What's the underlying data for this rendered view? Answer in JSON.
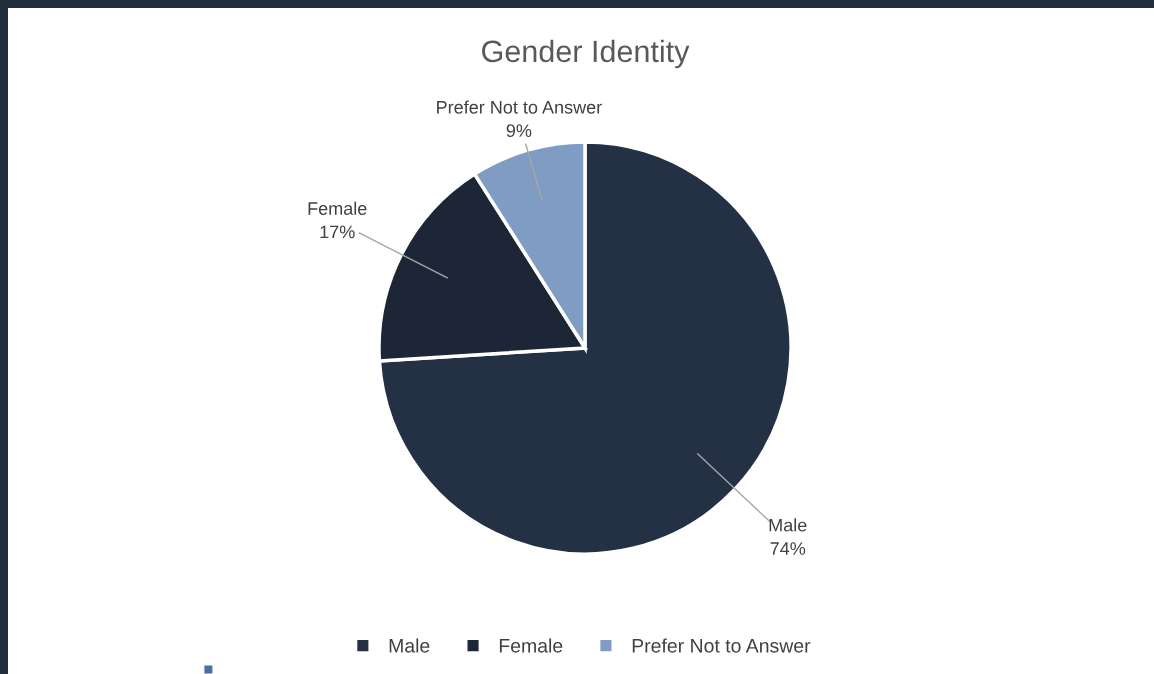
{
  "chart_data": {
    "type": "pie",
    "title": "Gender Identity",
    "categories": [
      "Male",
      "Female",
      "Prefer Not to Answer"
    ],
    "values": [
      74,
      17,
      9
    ],
    "colors": [
      "#243145",
      "#1c2636",
      "#7f9cc3"
    ],
    "value_labels": [
      "74%",
      "17%",
      "9%"
    ],
    "legend": "bottom"
  }
}
